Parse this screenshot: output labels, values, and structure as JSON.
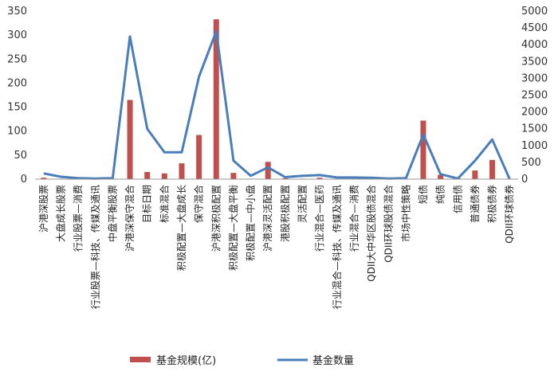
{
  "chart_data": {
    "type": "bar+line",
    "categories": [
      "沪港深股票",
      "大盘成长股票",
      "行业股票—消费",
      "行业股票—科技、传媒及通讯",
      "中盘平衡股票",
      "沪港深保守混合",
      "目标日期",
      "标准混合",
      "积极配置—大盘成长",
      "保守混合",
      "沪港深积极配置",
      "积极配置—大盘平衡",
      "积极配置—中小盘",
      "沪港深灵活配置",
      "港股积极配置",
      "灵活配置",
      "行业混合—医药",
      "行业混合—科技、传媒及通讯",
      "行业混合—消费",
      "QDII大中华区股债混合",
      "QDII环球股债混合",
      "市场中性策略",
      "短债",
      "纯债",
      "信用债",
      "普通债券",
      "积极债券",
      "QDII环球债券"
    ],
    "series": [
      {
        "name": "基金规模(亿)",
        "axis": "left",
        "color": "#c0504d",
        "values": [
          3,
          1,
          4,
          2,
          1,
          165,
          15,
          12,
          33,
          92,
          333,
          13,
          1,
          36,
          2,
          1,
          3,
          1,
          1,
          1,
          1,
          1,
          122,
          9,
          2,
          18,
          40,
          1
        ]
      },
      {
        "name": "基金数量",
        "axis": "right",
        "color": "#4a7ebb",
        "values": [
          170,
          70,
          30,
          20,
          30,
          4250,
          1500,
          800,
          800,
          3050,
          4400,
          550,
          100,
          350,
          60,
          100,
          120,
          50,
          50,
          40,
          20,
          30,
          1330,
          150,
          20,
          550,
          1180,
          10
        ]
      }
    ],
    "y_left": {
      "min": 0,
      "max": 350,
      "ticks": [
        0,
        50,
        100,
        150,
        200,
        250,
        300,
        350
      ]
    },
    "y_right": {
      "min": 0,
      "max": 5000,
      "ticks": [
        0,
        500,
        1000,
        1500,
        2000,
        2500,
        3000,
        3500,
        4000,
        4500,
        5000
      ]
    },
    "legend_position": "bottom",
    "grid": false
  }
}
